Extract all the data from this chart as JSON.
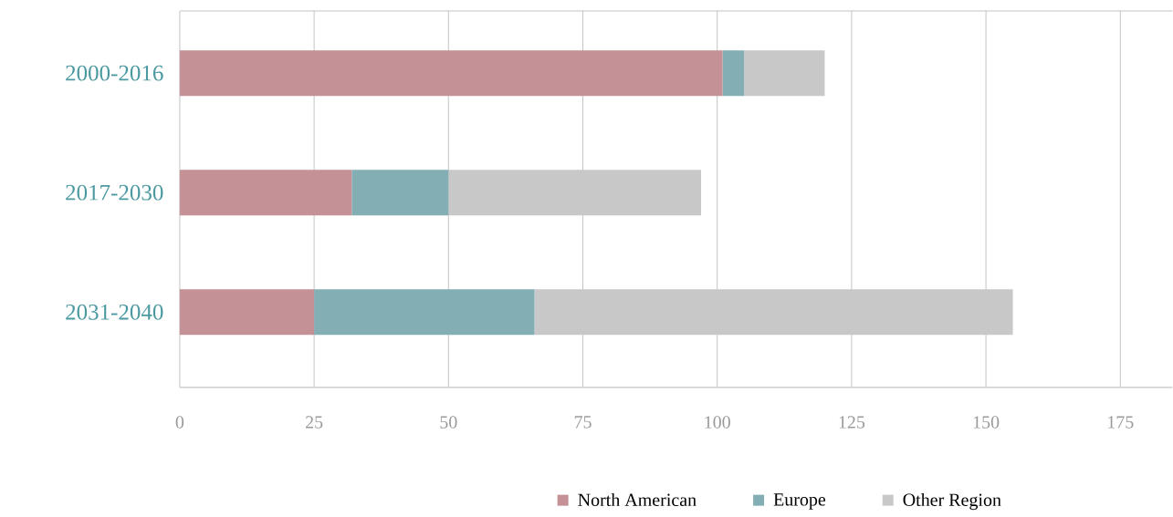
{
  "chart_data": {
    "type": "bar",
    "orientation": "horizontal",
    "stacked": true,
    "categories": [
      "2000-2016",
      "2017-2030",
      "2031-2040"
    ],
    "series": [
      {
        "name": "North American",
        "color": "#c49196",
        "values": [
          101,
          32,
          25
        ]
      },
      {
        "name": "Europe",
        "color": "#82aeb4",
        "values": [
          4,
          18,
          41
        ]
      },
      {
        "name": "Other Region",
        "color": "#c8c8c8",
        "values": [
          15,
          47,
          89
        ]
      }
    ],
    "xlim": [
      0,
      184.7
    ],
    "xticks": [
      0,
      25,
      50,
      75,
      100,
      125,
      150,
      175
    ],
    "grid": "x",
    "legend": "bottom"
  }
}
